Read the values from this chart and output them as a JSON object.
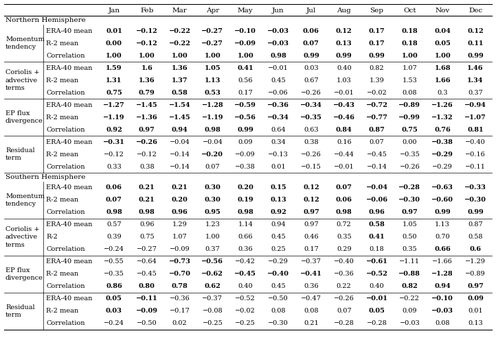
{
  "columns": [
    "Jan",
    "Feb",
    "Mar",
    "Apr",
    "May",
    "Jun",
    "Jul",
    "Aug",
    "Sep",
    "Oct",
    "Nov",
    "Dec"
  ],
  "sections": [
    {
      "name": "Northern Hemisphere",
      "is_header": true
    },
    {
      "row_label": "Momentum\ntendency",
      "rows": [
        {
          "label": "ERA-40 mean",
          "values": [
            "0.01",
            "−0.12",
            "−0.22",
            "−0.27",
            "−0.10",
            "−0.03",
            "0.06",
            "0.12",
            "0.17",
            "0.18",
            "0.04",
            "0.12"
          ],
          "bold": [
            true,
            true,
            true,
            true,
            true,
            true,
            true,
            true,
            true,
            true,
            true,
            true
          ]
        },
        {
          "label": "R-2 mean",
          "values": [
            "0.00",
            "−0.12",
            "−0.22",
            "−0.27",
            "−0.09",
            "−0.03",
            "0.07",
            "0.13",
            "0.17",
            "0.18",
            "0.05",
            "0.11"
          ],
          "bold": [
            true,
            true,
            true,
            true,
            true,
            true,
            true,
            true,
            true,
            true,
            true,
            true
          ]
        },
        {
          "label": "Correlation",
          "values": [
            "1.00",
            "1.00",
            "1.00",
            "1.00",
            "1.00",
            "0.98",
            "0.99",
            "0.99",
            "0.99",
            "1.00",
            "1.00",
            "0.99"
          ],
          "bold": [
            true,
            true,
            true,
            true,
            true,
            true,
            true,
            true,
            true,
            true,
            true,
            true
          ]
        }
      ]
    },
    {
      "row_label": "Coriolis +\nadvective\nterms",
      "rows": [
        {
          "label": "ERA-40 mean",
          "values": [
            "1.59",
            "1.6",
            "1.36",
            "1.05",
            "0.41",
            "−0.01",
            "0.03",
            "0.40",
            "0.82",
            "1.07",
            "1.68",
            "1.46"
          ],
          "bold": [
            true,
            true,
            true,
            true,
            true,
            false,
            false,
            false,
            false,
            false,
            true,
            true
          ]
        },
        {
          "label": "R-2 mean",
          "values": [
            "1.31",
            "1.36",
            "1.37",
            "1.13",
            "0.56",
            "0.45",
            "0.67",
            "1.03",
            "1.39",
            "1.53",
            "1.66",
            "1.34"
          ],
          "bold": [
            true,
            true,
            true,
            true,
            false,
            false,
            false,
            false,
            false,
            false,
            true,
            true
          ]
        },
        {
          "label": "Correlation",
          "values": [
            "0.75",
            "0.79",
            "0.58",
            "0.53",
            "0.17",
            "−0.06",
            "−0.26",
            "−0.01",
            "−0.02",
            "0.08",
            "0.3",
            "0.37"
          ],
          "bold": [
            true,
            true,
            true,
            true,
            false,
            false,
            false,
            false,
            false,
            false,
            false,
            false
          ]
        }
      ]
    },
    {
      "row_label": "EP flux\ndivergence",
      "rows": [
        {
          "label": "ERA-40 mean",
          "values": [
            "−1.27",
            "−1.45",
            "−1.54",
            "−1.28",
            "−0.59",
            "−0.36",
            "−0.34",
            "−0.43",
            "−0.72",
            "−0.89",
            "−1.26",
            "−0.94"
          ],
          "bold": [
            true,
            true,
            true,
            true,
            true,
            true,
            true,
            true,
            true,
            true,
            true,
            true
          ]
        },
        {
          "label": "R-2 mean",
          "values": [
            "−1.19",
            "−1.36",
            "−1.45",
            "−1.19",
            "−0.56",
            "−0.34",
            "−0.35",
            "−0.46",
            "−0.77",
            "−0.99",
            "−1.32",
            "−1.07"
          ],
          "bold": [
            true,
            true,
            true,
            true,
            true,
            true,
            true,
            true,
            true,
            true,
            true,
            true
          ]
        },
        {
          "label": "Correlation",
          "values": [
            "0.92",
            "0.97",
            "0.94",
            "0.98",
            "0.99",
            "0.64",
            "0.63",
            "0.84",
            "0.87",
            "0.75",
            "0.76",
            "0.81"
          ],
          "bold": [
            true,
            true,
            true,
            true,
            true,
            false,
            false,
            true,
            true,
            true,
            true,
            true
          ]
        }
      ]
    },
    {
      "row_label": "Residual\nterm",
      "rows": [
        {
          "label": "ERA-40 mean",
          "values": [
            "−0.31",
            "−0.26",
            "−0.04",
            "−0.04",
            "0.09",
            "0.34",
            "0.38",
            "0.16",
            "0.07",
            "0.00",
            "−0.38",
            "−0.40"
          ],
          "bold": [
            true,
            true,
            false,
            false,
            false,
            false,
            false,
            false,
            false,
            false,
            true,
            false
          ]
        },
        {
          "label": "R-2 mean",
          "values": [
            "−0.12",
            "−0.12",
            "−0.14",
            "−0.20",
            "−0.09",
            "−0.13",
            "−0.26",
            "−0.44",
            "−0.45",
            "−0.35",
            "−0.29",
            "−0.16"
          ],
          "bold": [
            false,
            false,
            false,
            true,
            false,
            false,
            false,
            false,
            false,
            false,
            true,
            false
          ]
        },
        {
          "label": "Correlation",
          "values": [
            "0.33",
            "0.38",
            "−0.14",
            "0.07",
            "−0.38",
            "0.01",
            "−0.15",
            "−0.01",
            "−0.14",
            "−0.26",
            "−0.29",
            "−0.11"
          ],
          "bold": [
            false,
            false,
            false,
            false,
            false,
            false,
            false,
            false,
            false,
            false,
            false,
            false
          ]
        }
      ]
    },
    {
      "name": "Southern Hemisphere",
      "is_header": true
    },
    {
      "row_label": "Momentum\ntendency",
      "rows": [
        {
          "label": "ERA-40 mean",
          "values": [
            "0.06",
            "0.21",
            "0.21",
            "0.30",
            "0.20",
            "0.15",
            "0.12",
            "0.07",
            "−0.04",
            "−0.28",
            "−0.63",
            "−0.33"
          ],
          "bold": [
            true,
            true,
            true,
            true,
            true,
            true,
            true,
            true,
            true,
            true,
            true,
            true
          ]
        },
        {
          "label": "R-2 mean",
          "values": [
            "0.07",
            "0.21",
            "0.20",
            "0.30",
            "0.19",
            "0.13",
            "0.12",
            "0.06",
            "−0.06",
            "−0.30",
            "−0.60",
            "−0.30"
          ],
          "bold": [
            true,
            true,
            true,
            true,
            true,
            true,
            true,
            true,
            true,
            true,
            true,
            true
          ]
        },
        {
          "label": "Correlation",
          "values": [
            "0.98",
            "0.98",
            "0.96",
            "0.95",
            "0.98",
            "0.92",
            "0.97",
            "0.98",
            "0.96",
            "0.97",
            "0.99",
            "0.99"
          ],
          "bold": [
            true,
            true,
            true,
            true,
            true,
            true,
            true,
            true,
            true,
            true,
            true,
            true
          ]
        }
      ]
    },
    {
      "row_label": "Coriolis +\nadvective\nterms",
      "rows": [
        {
          "label": "ERA-40 mean",
          "values": [
            "0.57",
            "0.96",
            "1.29",
            "1.23",
            "1.14",
            "0.94",
            "0.97",
            "0.72",
            "0.58",
            "1.05",
            "1.13",
            "0.87"
          ],
          "bold": [
            false,
            false,
            false,
            false,
            false,
            false,
            false,
            false,
            true,
            false,
            false,
            false
          ]
        },
        {
          "label": "R-2",
          "values": [
            "0.39",
            "0.75",
            "1.07",
            "1.00",
            "0.66",
            "0.45",
            "0.46",
            "0.35",
            "0.41",
            "0.50",
            "0.70",
            "0.58"
          ],
          "bold": [
            false,
            false,
            false,
            false,
            false,
            false,
            false,
            false,
            true,
            false,
            false,
            false
          ]
        },
        {
          "label": "Correlation",
          "values": [
            "−0.24",
            "−0.27",
            "−0.09",
            "0.37",
            "0.36",
            "0.25",
            "0.17",
            "0.29",
            "0.18",
            "0.35",
            "0.66",
            "0.6"
          ],
          "bold": [
            false,
            false,
            false,
            false,
            false,
            false,
            false,
            false,
            false,
            false,
            true,
            true
          ]
        }
      ]
    },
    {
      "row_label": "EP flux\ndivergence",
      "rows": [
        {
          "label": "ERA-40 mean",
          "values": [
            "−0.55",
            "−0.64",
            "−0.73",
            "−0.56",
            "−0.42",
            "−0.29",
            "−0.37",
            "−0.40",
            "−0.61",
            "−1.11",
            "−1.66",
            "−1.29"
          ],
          "bold": [
            false,
            false,
            true,
            true,
            false,
            false,
            false,
            false,
            true,
            false,
            false,
            false
          ]
        },
        {
          "label": "R-2 mean",
          "values": [
            "−0.35",
            "−0.45",
            "−0.70",
            "−0.62",
            "−0.45",
            "−0.40",
            "−0.41",
            "−0.36",
            "−0.52",
            "−0.88",
            "−1.28",
            "−0.89"
          ],
          "bold": [
            false,
            false,
            true,
            true,
            true,
            true,
            true,
            false,
            true,
            true,
            true,
            false
          ]
        },
        {
          "label": "Correlation",
          "values": [
            "0.86",
            "0.80",
            "0.78",
            "0.62",
            "0.40",
            "0.45",
            "0.36",
            "0.22",
            "0.40",
            "0.82",
            "0.94",
            "0.97"
          ],
          "bold": [
            true,
            true,
            true,
            true,
            false,
            false,
            false,
            false,
            false,
            true,
            true,
            true
          ]
        }
      ]
    },
    {
      "row_label": "Residual\nterm",
      "rows": [
        {
          "label": "ERA-40 mean",
          "values": [
            "0.05",
            "−0.11",
            "−0.36",
            "−0.37",
            "−0.52",
            "−0.50",
            "−0.47",
            "−0.26",
            "−0.01",
            "−0.22",
            "−0.10",
            "0.09"
          ],
          "bold": [
            true,
            true,
            false,
            false,
            false,
            false,
            false,
            false,
            true,
            false,
            true,
            true
          ]
        },
        {
          "label": "R-2 mean",
          "values": [
            "0.03",
            "−0.09",
            "−0.17",
            "−0.08",
            "−0.02",
            "0.08",
            "0.08",
            "0.07",
            "0.05",
            "0.09",
            "−0.03",
            "0.01"
          ],
          "bold": [
            true,
            true,
            false,
            false,
            false,
            false,
            false,
            false,
            true,
            false,
            true,
            false
          ]
        },
        {
          "label": "Correlation",
          "values": [
            "−0.24",
            "−0.50",
            "0.02",
            "−0.25",
            "−0.25",
            "−0.30",
            "0.21",
            "−0.28",
            "−0.28",
            "−0.03",
            "0.08",
            "0.13"
          ],
          "bold": [
            false,
            false,
            false,
            false,
            false,
            false,
            false,
            false,
            false,
            false,
            false,
            false
          ]
        }
      ]
    }
  ]
}
